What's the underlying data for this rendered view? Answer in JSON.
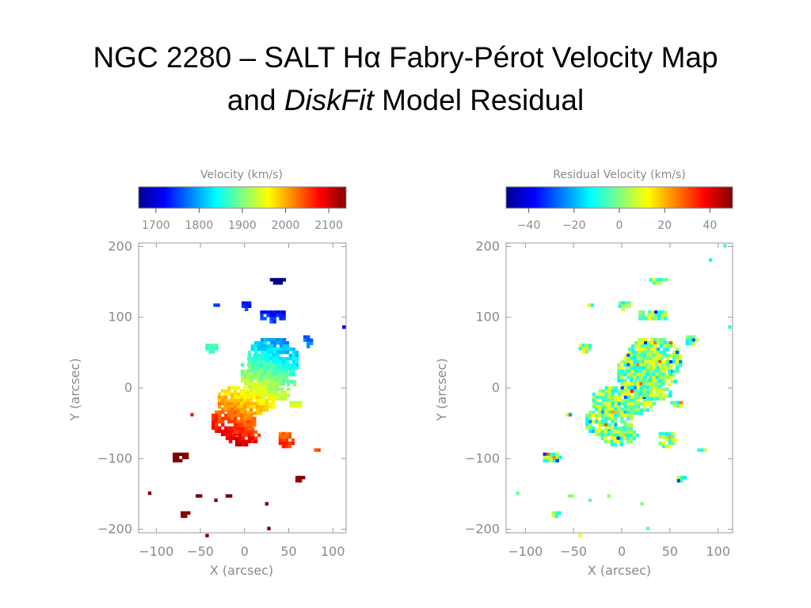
{
  "slide": {
    "title_line1": "NGC 2280 – SALT Hα Fabry-Pérot Velocity Map",
    "title_line2_pre": "and ",
    "title_line2_em": "DiskFit",
    "title_line2_post": " Model Residual"
  },
  "panels": [
    {
      "colorbar_label": "Velocity (km/s)",
      "colorbar_ticks": [
        1700,
        1800,
        1900,
        2000,
        2100
      ],
      "colorbar_tick_labels": [
        "1700",
        "1800",
        "1900",
        "2000",
        "2100"
      ],
      "colorbar_range": [
        1660,
        2140
      ],
      "xlabel": "X (arcsec)",
      "ylabel": "Y (arcsec)",
      "xticks": [
        "−100",
        "−50",
        "0",
        "50",
        "100"
      ],
      "yticks": [
        "200",
        "100",
        "0",
        "−100",
        "−200"
      ],
      "xlim": [
        -120,
        115
      ],
      "ylim": [
        -205,
        205
      ]
    },
    {
      "colorbar_label": "Residual Velocity (km/s)",
      "colorbar_ticks": [
        -40,
        -20,
        0,
        20,
        40
      ],
      "colorbar_tick_labels": [
        "−40",
        "−20",
        "0",
        "20",
        "40"
      ],
      "colorbar_range": [
        -50,
        50
      ],
      "xlabel": "X (arcsec)",
      "ylabel": "Y (arcsec)",
      "xticks": [
        "−100",
        "−50",
        "0",
        "50",
        "100"
      ],
      "yticks": [
        "200",
        "100",
        "0",
        "−100",
        "−200"
      ],
      "xlim": [
        -120,
        115
      ],
      "ylim": [
        -205,
        205
      ]
    }
  ],
  "colormap": [
    "#00008f",
    "#0000ff",
    "#0080ff",
    "#00ffff",
    "#80ff80",
    "#ffff00",
    "#ff8000",
    "#ff0000",
    "#800000"
  ]
}
